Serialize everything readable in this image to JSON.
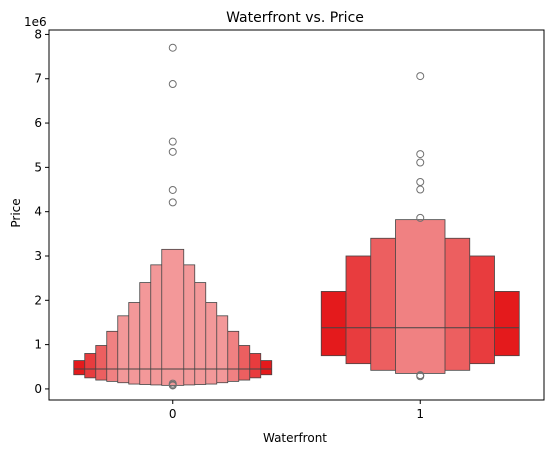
{
  "chart_data": {
    "type": "boxen",
    "title": "Waterfront vs. Price",
    "xlabel": "Waterfront",
    "ylabel": "Price",
    "y_offset_label": "1e6",
    "categories": [
      "0",
      "1"
    ],
    "yticks": [
      0,
      1,
      2,
      3,
      4,
      5,
      6,
      7,
      8
    ],
    "ylim": [
      -250000,
      8100000
    ],
    "grid": false,
    "fill_color": "#e41a1c",
    "line_color": "#444444",
    "groups": [
      {
        "category": "0",
        "median": 450000,
        "levels": [
          [
            320000,
            640000
          ],
          [
            250000,
            800000
          ],
          [
            200000,
            980000
          ],
          [
            170000,
            1300000
          ],
          [
            140000,
            1650000
          ],
          [
            110000,
            1950000
          ],
          [
            100000,
            2400000
          ],
          [
            90000,
            2800000
          ],
          [
            80000,
            3150000
          ]
        ],
        "outliers": [
          7700000,
          6880000,
          5580000,
          5350000,
          4490000,
          4210000,
          120000,
          90000,
          78000
        ]
      },
      {
        "category": "1",
        "median": 1380000,
        "levels": [
          [
            750000,
            2200000
          ],
          [
            570000,
            3000000
          ],
          [
            420000,
            3400000
          ],
          [
            350000,
            3820000
          ]
        ],
        "outliers": [
          7060000,
          5300000,
          5110000,
          4670000,
          4500000,
          3860000,
          310000,
          285000
        ]
      }
    ]
  }
}
